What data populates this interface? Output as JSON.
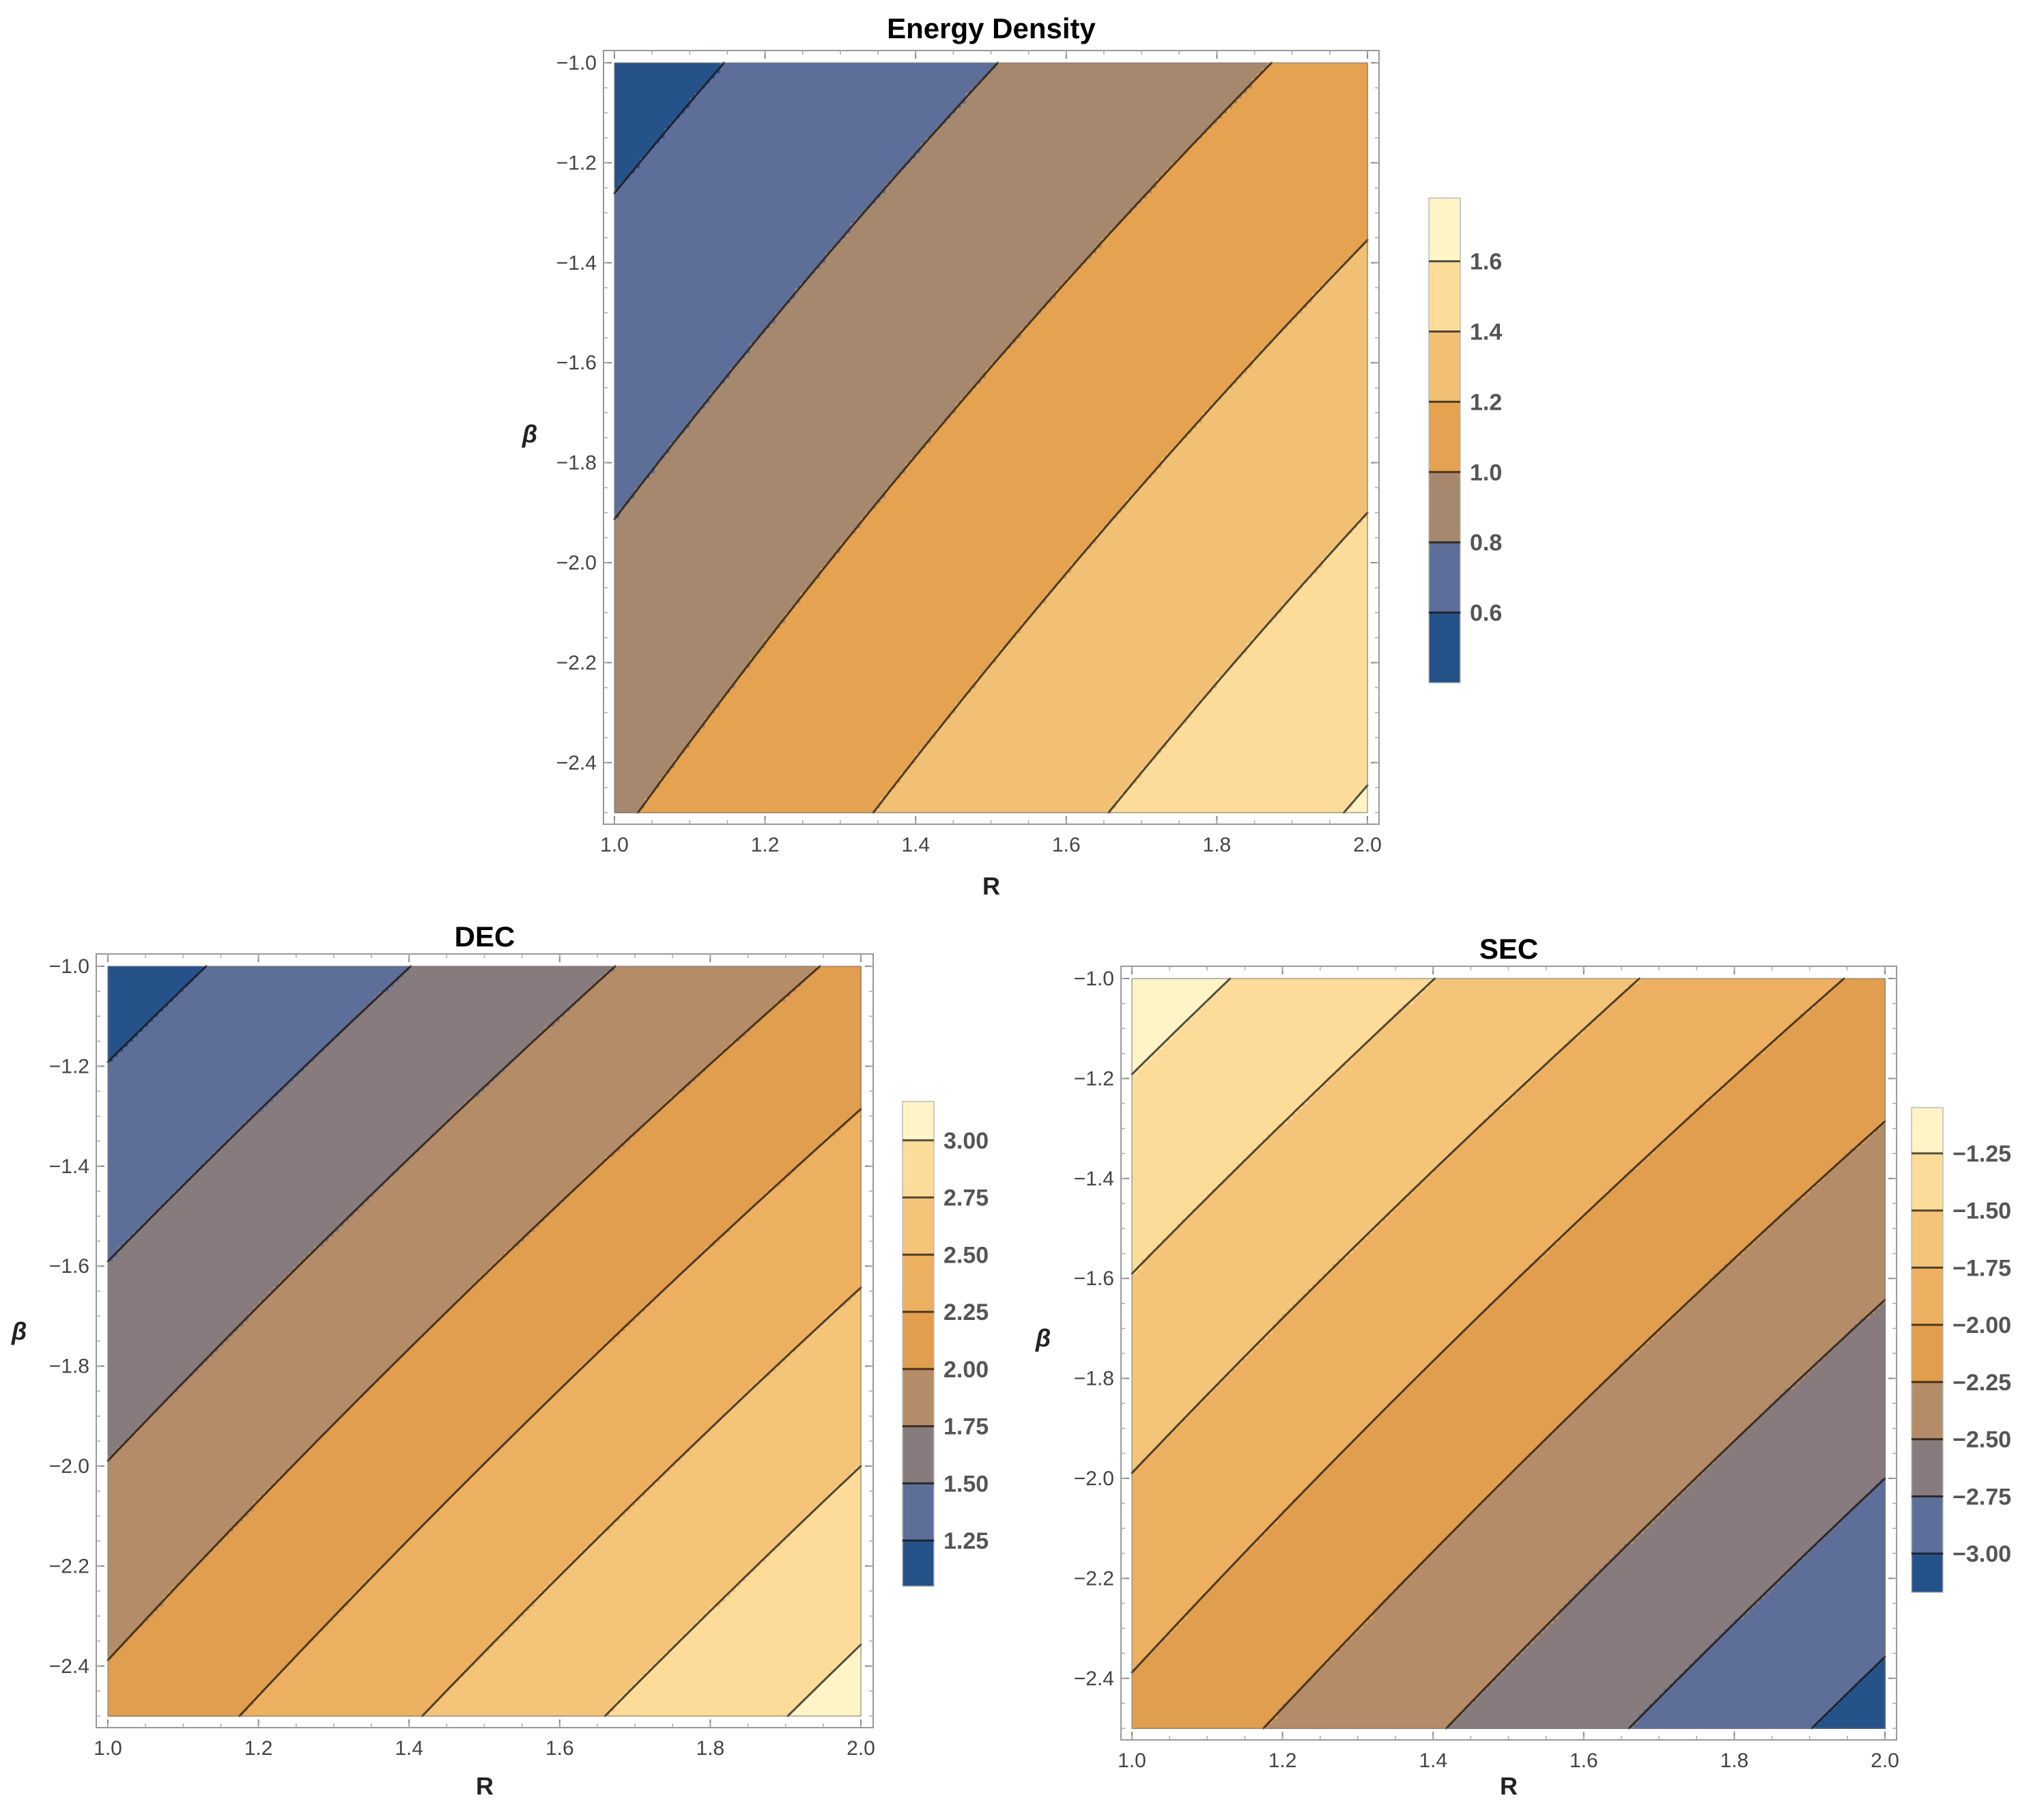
{
  "chart_data": [
    {
      "type": "contour",
      "title": "Energy Density",
      "xlabel": "R",
      "ylabel": "β",
      "xlim": [
        1.0,
        2.0
      ],
      "ylim": [
        -2.5,
        -1.0
      ],
      "xticks": [
        "1.0",
        "1.2",
        "1.4",
        "1.6",
        "1.8",
        "2.0"
      ],
      "yticks": [
        "-1.0",
        "-1.2",
        "-1.4",
        "-1.6",
        "-1.8",
        "-2.0",
        "-2.2",
        "-2.4"
      ],
      "levels": [
        0.6,
        0.8,
        1.0,
        1.2,
        1.4,
        1.6
      ],
      "legend_labels": [
        "0.6",
        "0.8",
        "1.0",
        "1.2",
        "1.4",
        "1.6"
      ],
      "value_range": [
        0.4,
        1.78
      ],
      "corner_values": {
        "R1_bm1": 0.52,
        "R2_bm1": 1.07,
        "R1_bm25": 0.98,
        "R2_bm25": 1.62
      },
      "bands": [
        "#255289",
        "#5d6e99",
        "#a5886e",
        "#e5a250",
        "#f1c074",
        "#fcdc98",
        "#fff4c6"
      ]
    },
    {
      "type": "contour",
      "title": "DEC",
      "xlabel": "R",
      "ylabel": "β",
      "xlim": [
        1.0,
        2.0
      ],
      "ylim": [
        -2.5,
        -1.0
      ],
      "xticks": [
        "1.0",
        "1.2",
        "1.4",
        "1.6",
        "1.8",
        "2.0"
      ],
      "yticks": [
        "-1.0",
        "-1.2",
        "-1.4",
        "-1.6",
        "-1.8",
        "-2.0",
        "-2.2",
        "-2.4"
      ],
      "levels": [
        1.25,
        1.5,
        1.75,
        2.0,
        2.25,
        2.5,
        2.75,
        3.0
      ],
      "legend_labels": [
        "1.25",
        "1.50",
        "1.75",
        "2.00",
        "2.25",
        "2.50",
        "2.75",
        "3.00"
      ],
      "value_range": [
        1.05,
        3.17
      ],
      "corner_values": {
        "R1_bm1": 1.13,
        "R2_bm1": 2.05,
        "R1_bm25": 2.07,
        "R2_bm25": 3.1
      },
      "bands": [
        "#255289",
        "#5d6e99",
        "#877b7d",
        "#b58c68",
        "#e09e4e",
        "#edb061",
        "#f4c478",
        "#fcdc98",
        "#fff4c6"
      ]
    },
    {
      "type": "contour",
      "title": "SEC",
      "xlabel": "R",
      "ylabel": "β",
      "xlim": [
        1.0,
        2.0
      ],
      "ylim": [
        -2.5,
        -1.0
      ],
      "xticks": [
        "1.0",
        "1.2",
        "1.4",
        "1.6",
        "1.8",
        "2.0"
      ],
      "yticks": [
        "-1.0",
        "-1.2",
        "-1.4",
        "-1.6",
        "-1.8",
        "-2.0",
        "-2.2",
        "-2.4"
      ],
      "levels": [
        -3.0,
        -2.75,
        -2.5,
        -2.25,
        -2.0,
        -1.75,
        -1.5,
        -1.25
      ],
      "legend_labels": [
        "-3.00",
        "-2.75",
        "-2.50",
        "-2.25",
        "-2.00",
        "-1.75",
        "-1.50",
        "-1.25"
      ],
      "value_range": [
        -3.17,
        -1.05
      ],
      "corner_values": {
        "R1_bm1": -1.13,
        "R2_bm1": -2.05,
        "R1_bm25": -2.07,
        "R2_bm25": -3.1
      },
      "bands": [
        "#255289",
        "#5d6e99",
        "#877b7d",
        "#b58c68",
        "#e09e4e",
        "#edb061",
        "#f4c478",
        "#fcdc98",
        "#fff4c6"
      ]
    }
  ]
}
